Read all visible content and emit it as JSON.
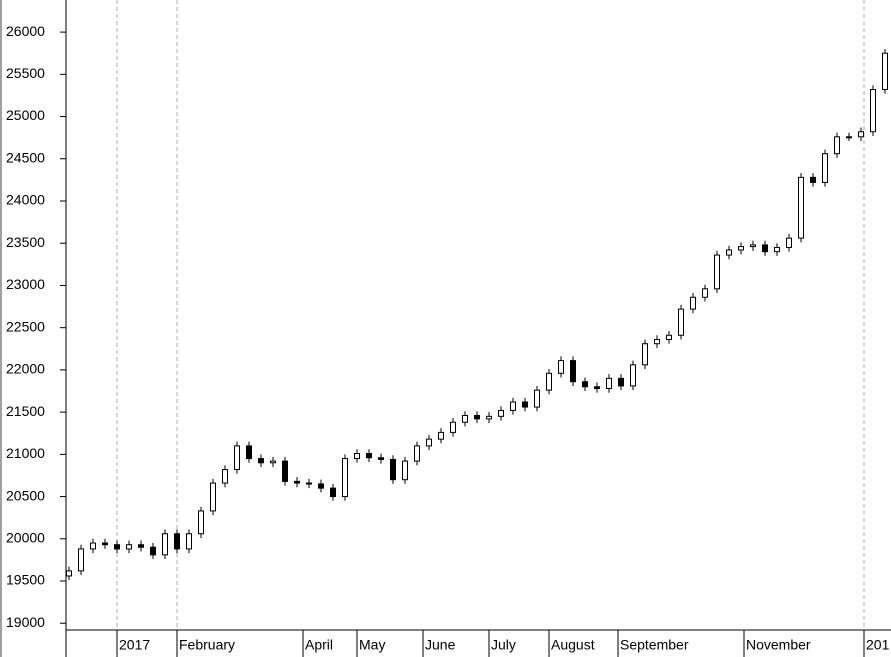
{
  "chart_data": {
    "type": "candlestick",
    "x": [
      0,
      4,
      8,
      12,
      16,
      20,
      24,
      28,
      32,
      36,
      40,
      44,
      48,
      52,
      56,
      60,
      64,
      68,
      72,
      76,
      80,
      84,
      88,
      92,
      96,
      100,
      104,
      108,
      112,
      116,
      120,
      124,
      128,
      132,
      136,
      140,
      144,
      148,
      152,
      156,
      160,
      164,
      168,
      172,
      176,
      180,
      184,
      188,
      192,
      196,
      200,
      204,
      208,
      212,
      216,
      220,
      224,
      228,
      232,
      236,
      240,
      244,
      248,
      252,
      256,
      260,
      264,
      268,
      272
    ],
    "open": [
      19560,
      19620,
      19880,
      19950,
      19930,
      19880,
      19930,
      19900,
      19810,
      20060,
      19880,
      20060,
      20330,
      20660,
      20820,
      21100,
      20950,
      20900,
      20920,
      20680,
      20660,
      20650,
      20600,
      20500,
      20950,
      21010,
      20960,
      20940,
      20700,
      20920,
      21100,
      21180,
      21260,
      21380,
      21460,
      21420,
      21450,
      21520,
      21620,
      21560,
      21760,
      21960,
      22110,
      21860,
      21800,
      21780,
      21900,
      21810,
      22060,
      22310,
      22360,
      22410,
      22720,
      22860,
      22960,
      23360,
      23420,
      23460,
      23480,
      23400,
      23450,
      23560,
      24280,
      24220,
      24560,
      24760,
      24760,
      24820,
      25320
    ],
    "high": [
      19670,
      19930,
      20000,
      20000,
      19980,
      19980,
      19980,
      19950,
      20110,
      20110,
      20110,
      20380,
      20710,
      20870,
      21150,
      21150,
      21000,
      20970,
      20970,
      20730,
      20710,
      20700,
      20650,
      21000,
      21060,
      21060,
      21010,
      20990,
      20970,
      21150,
      21230,
      21310,
      21430,
      21510,
      21510,
      21500,
      21570,
      21670,
      21670,
      21810,
      22010,
      22160,
      22160,
      21910,
      21850,
      21950,
      21950,
      22110,
      22360,
      22410,
      22460,
      22770,
      22910,
      23010,
      23410,
      23470,
      23510,
      23530,
      23530,
      23500,
      23610,
      24330,
      24330,
      24610,
      24810,
      24810,
      24870,
      25370,
      25800
    ],
    "low": [
      19510,
      19570,
      19830,
      19880,
      19830,
      19830,
      19850,
      19760,
      19760,
      19830,
      19830,
      20010,
      20280,
      20610,
      20770,
      20900,
      20850,
      20850,
      20630,
      20610,
      20600,
      20550,
      20450,
      20450,
      20900,
      20910,
      20890,
      20650,
      20650,
      20870,
      21050,
      21130,
      21210,
      21330,
      21370,
      21370,
      21400,
      21470,
      21510,
      21510,
      21710,
      21910,
      21810,
      21750,
      21730,
      21730,
      21760,
      21760,
      22010,
      22260,
      22310,
      22360,
      22670,
      22810,
      22910,
      23310,
      23370,
      23410,
      23350,
      23350,
      23400,
      23510,
      24170,
      24170,
      24510,
      24710,
      24710,
      24770,
      25270
    ],
    "close": [
      19620,
      19880,
      19950,
      19930,
      19880,
      19930,
      19900,
      19810,
      20060,
      19880,
      20060,
      20330,
      20660,
      20820,
      21100,
      20950,
      20900,
      20920,
      20680,
      20660,
      20650,
      20600,
      20500,
      20950,
      21010,
      20960,
      20940,
      20700,
      20920,
      21100,
      21180,
      21260,
      21380,
      21460,
      21420,
      21450,
      21520,
      21620,
      21560,
      21760,
      21960,
      22110,
      21860,
      21800,
      21780,
      21900,
      21810,
      22060,
      22310,
      22360,
      22410,
      22720,
      22860,
      22960,
      23360,
      23420,
      23460,
      23480,
      23400,
      23450,
      23560,
      24280,
      24220,
      24560,
      24760,
      24760,
      24820,
      25320,
      25750
    ],
    "up_color": "#ffffff",
    "down_color": "#000000",
    "line_color": "#000000",
    "xlim": [
      -1,
      274
    ],
    "xticks": [
      {
        "value": 16,
        "label": "2017"
      },
      {
        "value": 36,
        "label": "February"
      },
      {
        "value": 78,
        "label": "April"
      },
      {
        "value": 96,
        "label": "May"
      },
      {
        "value": 118,
        "label": "June"
      },
      {
        "value": 140,
        "label": "July"
      },
      {
        "value": 160,
        "label": "August"
      },
      {
        "value": 183,
        "label": "September"
      },
      {
        "value": 225,
        "label": "November"
      },
      {
        "value": 265,
        "label": "201"
      }
    ],
    "xgrid": [
      16,
      36,
      265
    ],
    "ylim": [
      18920,
      26380
    ],
    "yticks": [
      19000,
      19500,
      20000,
      20500,
      21000,
      21500,
      22000,
      22500,
      23000,
      23500,
      24000,
      24500,
      25000,
      25500,
      26000
    ]
  }
}
